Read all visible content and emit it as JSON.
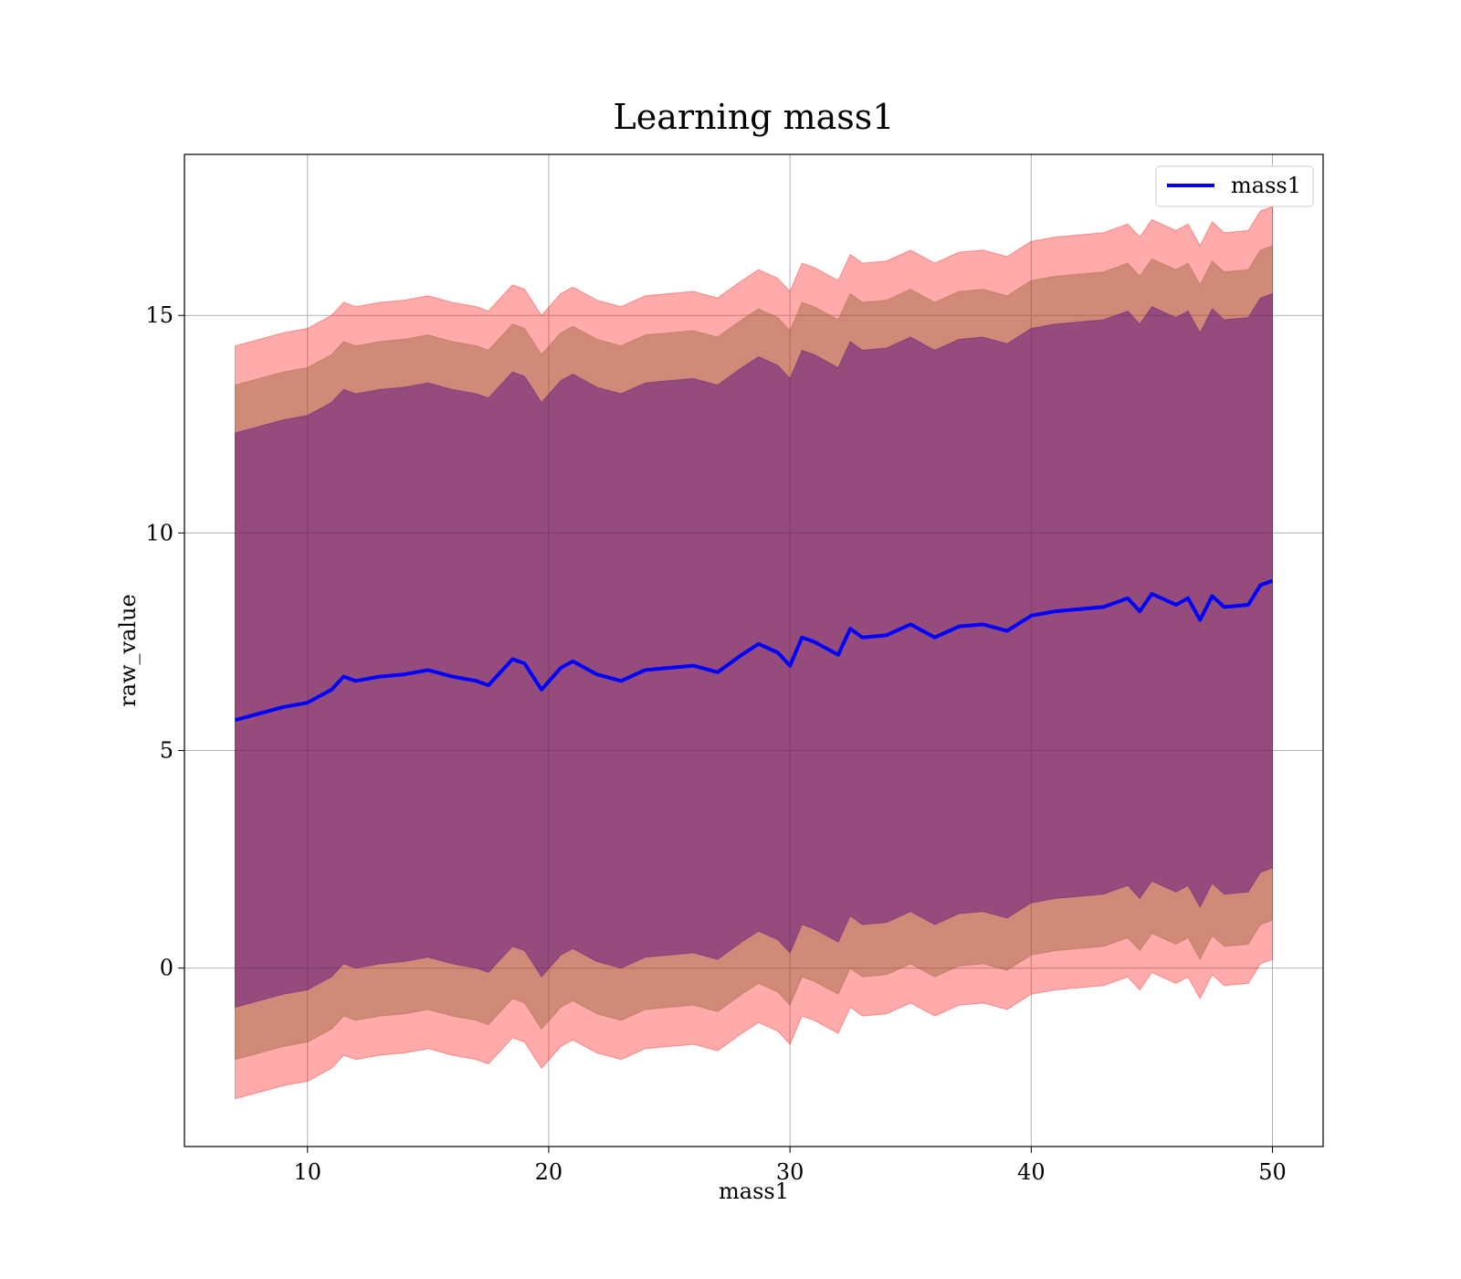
{
  "chart_data": {
    "type": "line",
    "title": "Learning mass1",
    "xlabel": "mass1",
    "ylabel": "raw_value",
    "xlim": [
      4.9,
      52.1
    ],
    "ylim": [
      -4.1,
      18.7
    ],
    "xticks": [
      10,
      20,
      30,
      40,
      50
    ],
    "yticks": [
      0,
      5,
      10,
      15
    ],
    "grid": true,
    "legend": {
      "placement": "top-right",
      "entries": [
        "mass1"
      ]
    },
    "colors": {
      "line": "#0000ff",
      "band_outer": "#ff0000",
      "band_middle": "#8b5a2b",
      "band_inner": "#4b0082"
    },
    "series": [
      {
        "name": "mass1",
        "x": [
          7,
          8,
          9,
          10,
          11,
          11.5,
          12,
          13,
          14,
          15,
          16,
          17,
          17.5,
          18,
          18.5,
          19,
          19.7,
          20.5,
          21,
          22,
          23,
          24,
          25,
          26,
          27,
          28,
          28.7,
          29.5,
          30,
          30.5,
          31,
          32,
          32.5,
          33,
          34,
          35,
          36,
          37,
          38,
          39,
          40,
          41,
          42,
          43,
          44,
          44.5,
          45,
          46,
          46.5,
          47,
          47.5,
          48,
          49,
          49.5,
          50
        ],
        "y": [
          5.7,
          5.85,
          6.0,
          6.1,
          6.4,
          6.7,
          6.6,
          6.7,
          6.75,
          6.85,
          6.7,
          6.6,
          6.5,
          6.8,
          7.1,
          7.0,
          6.4,
          6.9,
          7.05,
          6.75,
          6.6,
          6.85,
          6.9,
          6.95,
          6.8,
          7.2,
          7.45,
          7.25,
          6.95,
          7.6,
          7.5,
          7.2,
          7.8,
          7.6,
          7.65,
          7.9,
          7.6,
          7.85,
          7.9,
          7.75,
          8.1,
          8.2,
          8.25,
          8.3,
          8.5,
          8.2,
          8.6,
          8.35,
          8.5,
          8.0,
          8.55,
          8.3,
          8.35,
          8.8,
          8.9
        ],
        "bands": [
          {
            "level": "outer",
            "lower_offset": -8.7,
            "upper_offset": 8.6
          },
          {
            "level": "middle",
            "lower_offset": -7.8,
            "upper_offset": 7.7
          },
          {
            "level": "inner",
            "lower_offset": -6.6,
            "upper_offset": 6.6
          }
        ]
      }
    ]
  }
}
